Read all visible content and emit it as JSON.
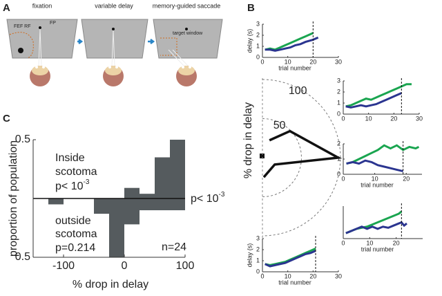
{
  "panels": [
    "A",
    "B",
    "C"
  ],
  "diagram": {
    "steps": [
      "fixation",
      "variable delay",
      "memory-guided saccade"
    ],
    "labels": {
      "rf": "FEF RF",
      "fp": "FP",
      "target": "target window"
    }
  },
  "chart_data": [
    {
      "type": "polar",
      "ylabel": "% drop in delay",
      "theta": [
        68,
        44,
        0,
        -29,
        -86
      ],
      "values": [
        24,
        49,
        97,
        18,
        25
      ],
      "color": "#111111",
      "rlim": [
        0,
        100
      ],
      "rticks": [
        50,
        100
      ]
    },
    {
      "type": "line",
      "xlabel": "trial number",
      "ylabel": "delay (s)",
      "xlim": [
        0,
        30
      ],
      "ylim": [
        0,
        3
      ],
      "xticks": [
        0,
        10,
        20,
        30
      ],
      "yticks": [
        0,
        1,
        2,
        3
      ],
      "vline": 20,
      "x": [
        1,
        3,
        5,
        7,
        9,
        11,
        13,
        15,
        17,
        20,
        22
      ],
      "series": [
        {
          "color": "#1aa550",
          "values": [
            0.7,
            0.8,
            0.7,
            0.9,
            1.1,
            1.3,
            1.5,
            1.7,
            1.9,
            2.2,
            null
          ]
        },
        {
          "color": "#2b3590",
          "values": [
            0.7,
            0.7,
            0.6,
            0.7,
            0.8,
            0.9,
            1.1,
            1.2,
            1.4,
            1.6,
            1.8
          ]
        }
      ]
    },
    {
      "type": "line",
      "xlim": [
        0,
        30
      ],
      "ylim": [
        0,
        3
      ],
      "xticks": [
        0,
        10,
        20,
        30
      ],
      "yticks": [
        0,
        1,
        2,
        3
      ],
      "vline": 23,
      "x": [
        1,
        3,
        5,
        7,
        9,
        11,
        13,
        15,
        17,
        19,
        21,
        23,
        25,
        27
      ],
      "series": [
        {
          "color": "#1aa550",
          "values": [
            0.7,
            0.8,
            1.0,
            1.2,
            1.4,
            1.3,
            1.5,
            1.7,
            1.9,
            2.1,
            2.3,
            2.5,
            2.7,
            2.7
          ]
        },
        {
          "color": "#2b3590",
          "values": [
            0.7,
            0.6,
            0.7,
            0.8,
            0.7,
            0.8,
            0.9,
            1.1,
            1.3,
            1.5,
            1.7,
            1.9,
            null,
            null
          ]
        }
      ]
    },
    {
      "type": "line",
      "xlabel": "trial number",
      "xlim": [
        0,
        25
      ],
      "ylim": [
        0,
        2
      ],
      "xticks": [
        0,
        10,
        20
      ],
      "yticks": [
        0,
        1,
        2
      ],
      "vline": 19,
      "x": [
        1,
        3,
        5,
        7,
        9,
        11,
        13,
        15,
        17,
        19,
        21,
        23,
        24
      ],
      "series": [
        {
          "color": "#1aa550",
          "values": [
            0.7,
            0.8,
            1.0,
            1.2,
            1.4,
            1.6,
            1.9,
            1.7,
            1.9,
            1.6,
            1.8,
            1.7,
            1.8
          ]
        },
        {
          "color": "#2b3590",
          "values": [
            0.7,
            0.8,
            0.7,
            0.9,
            0.8,
            0.6,
            0.5,
            0.4,
            0.3,
            0.2,
            null,
            null,
            null
          ]
        }
      ]
    },
    {
      "type": "line",
      "xlabel": "trial number",
      "xlim": [
        0,
        30
      ],
      "ylim": [
        0,
        3
      ],
      "xticks": [
        0,
        10,
        20
      ],
      "vline": 22,
      "x": [
        1,
        3,
        5,
        7,
        9,
        11,
        13,
        15,
        17,
        19,
        21,
        22,
        23,
        24
      ],
      "series": [
        {
          "color": "#1aa550",
          "values": [
            0.5,
            0.7,
            0.9,
            1.0,
            1.1,
            1.3,
            1.5,
            1.7,
            1.9,
            2.1,
            2.3,
            2.5,
            null,
            null
          ]
        },
        {
          "color": "#2b3590",
          "values": [
            0.5,
            0.7,
            0.9,
            1.1,
            0.9,
            1.1,
            0.9,
            1.1,
            1.0,
            1.2,
            1.4,
            1.5,
            1.2,
            1.4
          ]
        }
      ]
    },
    {
      "type": "line",
      "xlabel": "trial number",
      "ylabel": "delay (s)",
      "xlim": [
        0,
        30
      ],
      "ylim": [
        0,
        3
      ],
      "xticks": [
        0,
        10,
        20,
        30
      ],
      "yticks": [
        0,
        1,
        2,
        3
      ],
      "vline": 21,
      "x": [
        1,
        3,
        5,
        7,
        9,
        11,
        13,
        15,
        17,
        19,
        21
      ],
      "series": [
        {
          "color": "#1aa550",
          "values": [
            0.7,
            0.6,
            0.7,
            0.8,
            0.9,
            1.1,
            1.3,
            1.5,
            1.7,
            1.9,
            2.1
          ]
        },
        {
          "color": "#2b3590",
          "values": [
            0.7,
            0.5,
            0.6,
            0.7,
            0.8,
            1.0,
            1.2,
            1.4,
            1.6,
            1.7,
            1.9
          ]
        }
      ]
    },
    {
      "type": "histogram",
      "xlabel": "% drop in delay",
      "ylabel": "proportion of population",
      "bins": [
        -125,
        -100,
        -75,
        -50,
        -25,
        0,
        25,
        50,
        75,
        100
      ],
      "series": [
        {
          "color": "#555b5e",
          "values": [
            0,
            0,
            0,
            0,
            0,
            0.09,
            0.04,
            0.35,
            0.5
          ]
        },
        {
          "color": "#555b5e",
          "values": [
            -0.05,
            0,
            0,
            -0.13,
            -0.5,
            -0.22,
            -0.1,
            -0.1,
            -0.1
          ]
        }
      ],
      "xlim": [
        -150,
        100
      ],
      "ylim": [
        -0.5,
        0.5
      ],
      "xticks": [
        -100,
        0,
        100
      ],
      "yticks": [
        {
          "value": 0.5,
          "label": "0.5"
        },
        {
          "value": -0.5,
          "label": "0.5"
        }
      ],
      "annotations": {
        "inside": [
          "Inside",
          "scotoma"
        ],
        "inside_p": {
          "text": "p< 10",
          "sup": "-3"
        },
        "outside": [
          "outside",
          "scotoma",
          "p=0.214"
        ],
        "overall_p": {
          "text": "p< 10",
          "sup": "-3"
        },
        "n": "n=24"
      }
    }
  ]
}
